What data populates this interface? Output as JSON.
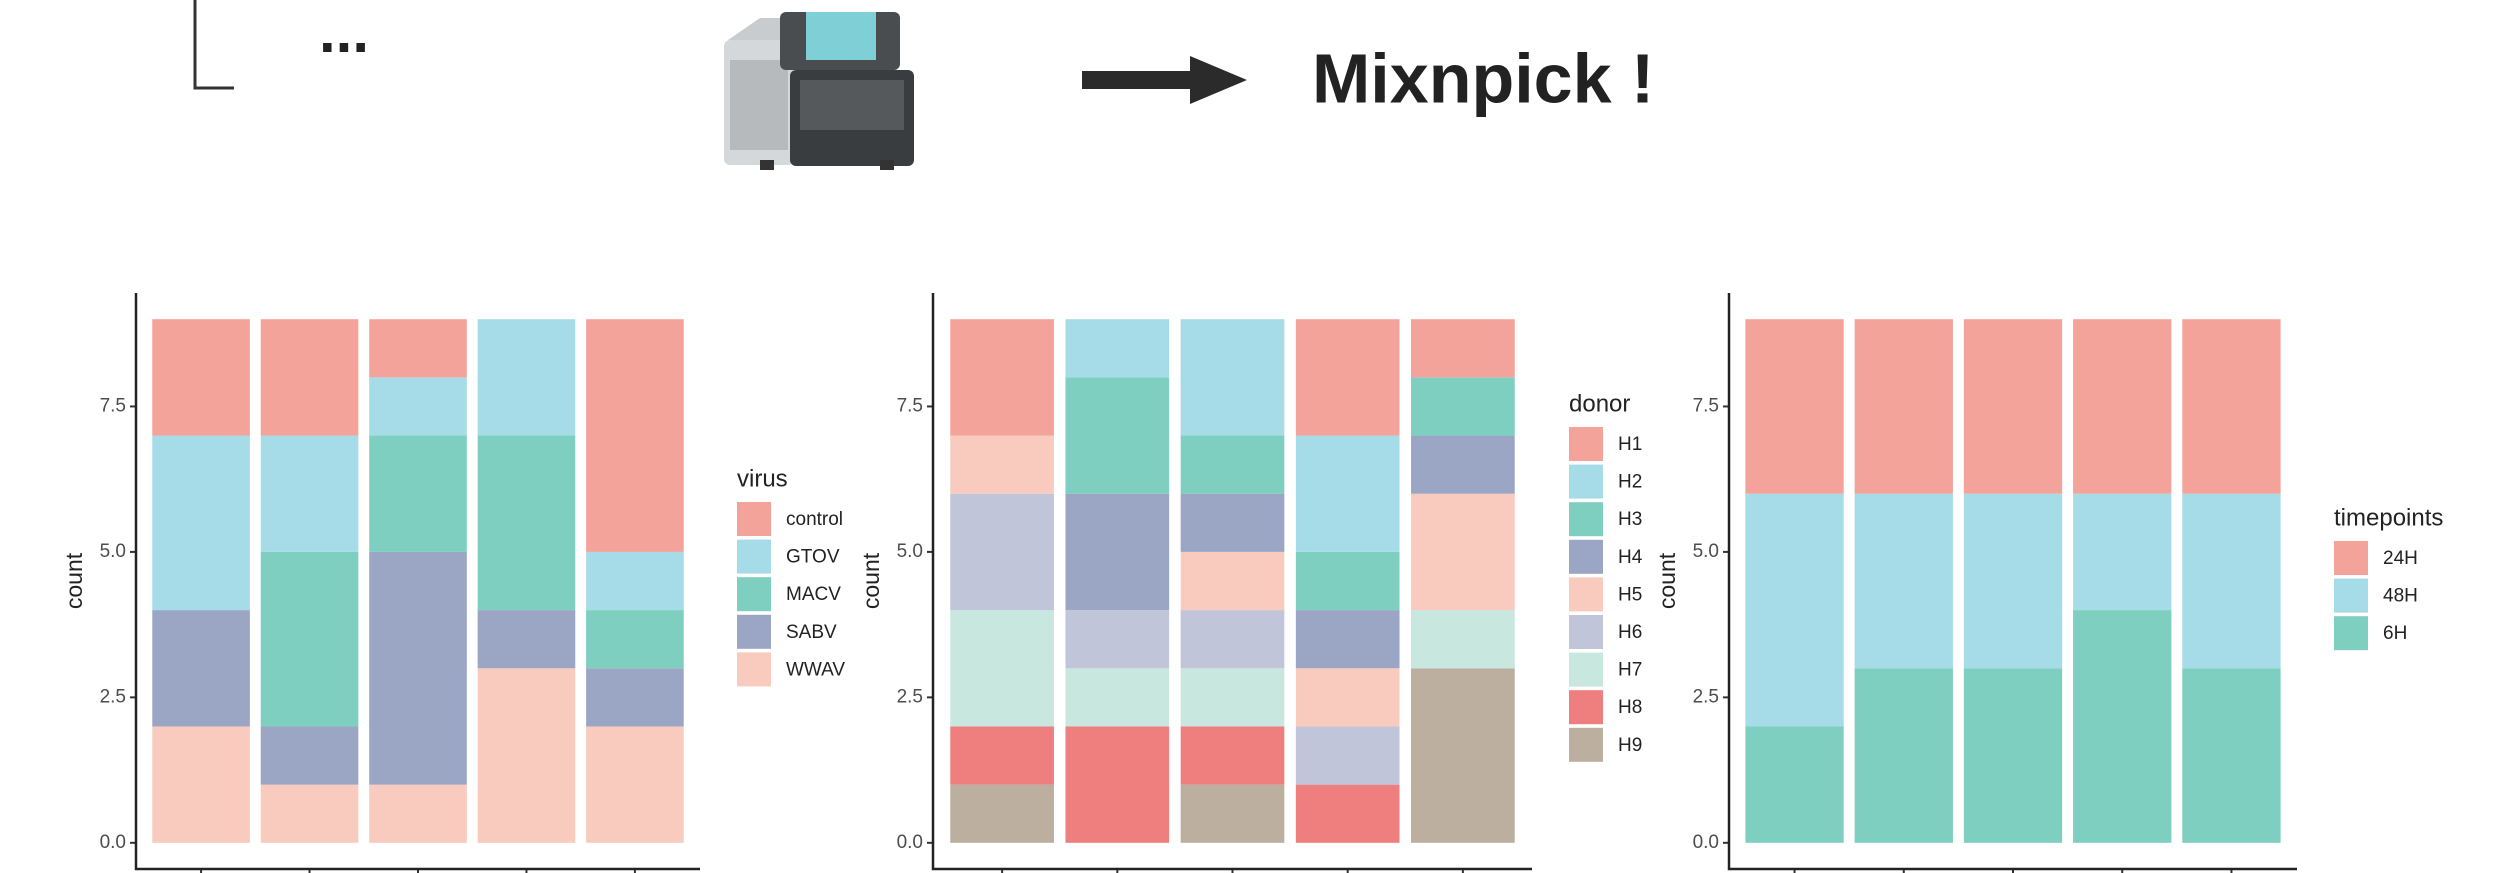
{
  "header": {
    "title": "Mixnpick !",
    "dots": "..."
  },
  "chart_data": [
    {
      "type": "stacked_bar",
      "ylabel": "count",
      "legend_title": "virus",
      "legend": "right",
      "categories": [
        null,
        null,
        null,
        null,
        null
      ],
      "ylim": [
        -0.45,
        9.45
      ],
      "yticks": [
        {
          "value": 0,
          "label": "0.0"
        },
        2.5,
        {
          "value": 5,
          "label": "5.0"
        },
        7.5
      ],
      "series": [
        {
          "name": "control",
          "color": "#F4A39A",
          "values": [
            2,
            2,
            1,
            0,
            4
          ]
        },
        {
          "name": "GTOV",
          "color": "#A6DBE8",
          "values": [
            3,
            2,
            1,
            2,
            1
          ]
        },
        {
          "name": "MACV",
          "color": "#7ECFC0",
          "values": [
            0,
            3,
            2,
            3,
            1
          ]
        },
        {
          "name": "SABV",
          "color": "#9BA6C4",
          "values": [
            2,
            1,
            4,
            1,
            1
          ]
        },
        {
          "name": "WWAV",
          "color": "#F9CBBE",
          "values": [
            2,
            1,
            1,
            3,
            2
          ]
        }
      ]
    },
    {
      "type": "stacked_bar",
      "ylabel": "count",
      "legend_title": "donor",
      "legend": "right",
      "categories": [
        null,
        null,
        null,
        null,
        null
      ],
      "ylim": [
        -0.45,
        9.45
      ],
      "yticks": [
        {
          "value": 0,
          "label": "0.0"
        },
        2.5,
        {
          "value": 5,
          "label": "5.0"
        },
        7.5
      ],
      "series": [
        {
          "name": "H1",
          "color": "#F4A39A",
          "values": [
            2,
            0,
            0,
            2,
            1
          ]
        },
        {
          "name": "H2",
          "color": "#A6DBE8",
          "values": [
            0,
            1,
            2,
            2,
            0
          ]
        },
        {
          "name": "H3",
          "color": "#7ECFC0",
          "values": [
            0,
            2,
            1,
            1,
            1
          ]
        },
        {
          "name": "H4",
          "color": "#9BA6C4",
          "values": [
            0,
            2,
            1,
            1,
            1
          ]
        },
        {
          "name": "H5",
          "color": "#F9CBBE",
          "values": [
            1,
            0,
            1,
            1,
            2
          ]
        },
        {
          "name": "H6",
          "color": "#C0C5D9",
          "values": [
            2,
            1,
            1,
            1,
            0
          ]
        },
        {
          "name": "H7",
          "color": "#C7E7DF",
          "values": [
            2,
            1,
            1,
            0,
            1
          ]
        },
        {
          "name": "H8",
          "color": "#EE7F7E",
          "values": [
            1,
            2,
            1,
            1,
            0
          ]
        },
        {
          "name": "H9",
          "color": "#BCAFA0",
          "values": [
            1,
            0,
            1,
            0,
            3
          ]
        }
      ]
    },
    {
      "type": "stacked_bar",
      "ylabel": "count",
      "legend_title": "timepoints",
      "legend": "right",
      "categories": [
        null,
        null,
        null,
        null,
        null
      ],
      "ylim": [
        -0.45,
        9.45
      ],
      "yticks": [
        {
          "value": 0,
          "label": "0.0"
        },
        2.5,
        {
          "value": 5,
          "label": "5.0"
        },
        7.5
      ],
      "series": [
        {
          "name": "24H",
          "color": "#F4A39A",
          "values": [
            3,
            3,
            3,
            3,
            3
          ]
        },
        {
          "name": "48H",
          "color": "#A6DBE8",
          "values": [
            4,
            3,
            3,
            2,
            3
          ]
        },
        {
          "name": "6H",
          "color": "#7ECFC0",
          "values": [
            2,
            3,
            3,
            4,
            3
          ]
        }
      ]
    }
  ]
}
